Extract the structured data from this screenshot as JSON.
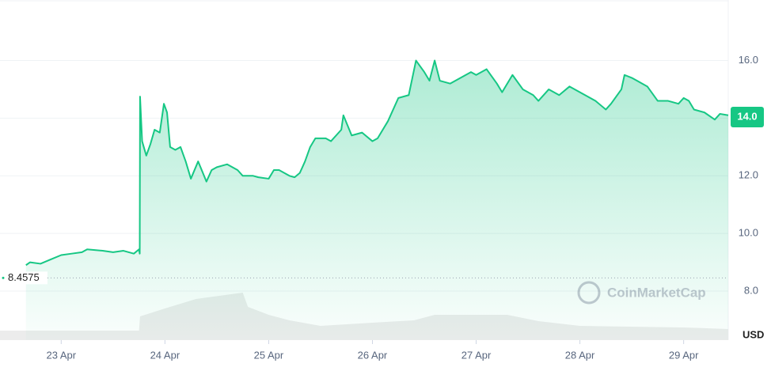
{
  "chart_data": {
    "type": "line",
    "x": [
      -0.34,
      -0.3,
      -0.2,
      -0.1,
      0.0,
      0.1,
      0.2,
      0.25,
      0.4,
      0.5,
      0.6,
      0.7,
      0.75,
      0.757,
      0.76,
      0.78,
      0.82,
      0.86,
      0.9,
      0.95,
      0.99,
      1.02,
      1.05,
      1.1,
      1.15,
      1.2,
      1.25,
      1.32,
      1.4,
      1.45,
      1.5,
      1.6,
      1.7,
      1.75,
      1.85,
      1.9,
      2.0,
      2.05,
      2.1,
      2.2,
      2.25,
      2.3,
      2.35,
      2.4,
      2.45,
      2.55,
      2.6,
      2.7,
      2.72,
      2.8,
      2.9,
      3.0,
      3.05,
      3.15,
      3.25,
      3.35,
      3.42,
      3.5,
      3.55,
      3.6,
      3.65,
      3.75,
      3.85,
      3.95,
      4.0,
      4.1,
      4.2,
      4.25,
      4.35,
      4.45,
      4.55,
      4.6,
      4.7,
      4.8,
      4.9,
      5.0,
      5.05,
      5.15,
      5.25,
      5.3,
      5.4,
      5.43,
      5.5,
      5.55,
      5.65,
      5.75,
      5.85,
      5.95,
      6.0,
      6.05,
      6.1,
      6.2,
      6.3,
      6.35,
      6.43
    ],
    "series": [
      {
        "color": "#16c784",
        "values": [
          8.9,
          9.0,
          8.95,
          9.1,
          9.25,
          9.3,
          9.35,
          9.45,
          9.4,
          9.35,
          9.4,
          9.3,
          9.45,
          9.3,
          14.75,
          13.2,
          12.7,
          13.1,
          13.6,
          13.5,
          14.5,
          14.2,
          13.0,
          12.9,
          13.0,
          12.5,
          11.9,
          12.5,
          11.8,
          12.2,
          12.3,
          12.4,
          12.2,
          12.0,
          12.0,
          11.95,
          11.9,
          12.2,
          12.2,
          12.0,
          11.95,
          12.1,
          12.5,
          13.0,
          13.3,
          13.3,
          13.2,
          13.6,
          14.1,
          13.4,
          13.5,
          13.2,
          13.3,
          13.9,
          14.7,
          14.8,
          16.0,
          15.6,
          15.3,
          16.0,
          15.3,
          15.2,
          15.4,
          15.6,
          15.5,
          15.7,
          15.2,
          14.9,
          15.5,
          15.0,
          14.8,
          14.6,
          15.0,
          14.8,
          15.1,
          14.9,
          14.8,
          14.6,
          14.3,
          14.5,
          15.0,
          15.5,
          15.4,
          15.3,
          15.1,
          14.6,
          14.6,
          14.5,
          14.7,
          14.6,
          14.3,
          14.2,
          13.95,
          14.15,
          14.1
        ]
      }
    ],
    "volume": {
      "color": "#ececec",
      "x": [
        -0.59,
        0.75,
        0.76,
        1.0,
        1.3,
        1.75,
        1.8,
        2.0,
        2.2,
        2.5,
        3.0,
        3.4,
        3.6,
        4.3,
        4.6,
        5.0,
        6.0,
        6.43
      ],
      "values": [
        12,
        12,
        30,
        40,
        52,
        60,
        42,
        32,
        25,
        18,
        22,
        25,
        32,
        32,
        24,
        18,
        16,
        14
      ],
      "ylim": [
        0,
        100
      ]
    },
    "xlim": [
      -0.59,
      6.43
    ],
    "xticks": [
      {
        "value": 0,
        "label": "23 Apr"
      },
      {
        "value": 1,
        "label": "24 Apr"
      },
      {
        "value": 2,
        "label": "25 Apr"
      },
      {
        "value": 3,
        "label": "26 Apr"
      },
      {
        "value": 4,
        "label": "27 Apr"
      },
      {
        "value": 5,
        "label": "28 Apr"
      },
      {
        "value": 6,
        "label": "29 Apr"
      }
    ],
    "ylim": [
      6.3,
      18.1
    ],
    "yticks": [
      {
        "value": 8,
        "label": "8.0"
      },
      {
        "value": 10,
        "label": "10.0"
      },
      {
        "value": 12,
        "label": "12.0"
      },
      {
        "value": 14,
        "label": "14.0"
      },
      {
        "value": 16,
        "label": "16.0"
      }
    ],
    "grid": true,
    "reference_line": 8.4575,
    "last_price": {
      "value": 14.04,
      "label": "14.0"
    },
    "watermark": "CoinMarketCap",
    "currency": "USD"
  }
}
